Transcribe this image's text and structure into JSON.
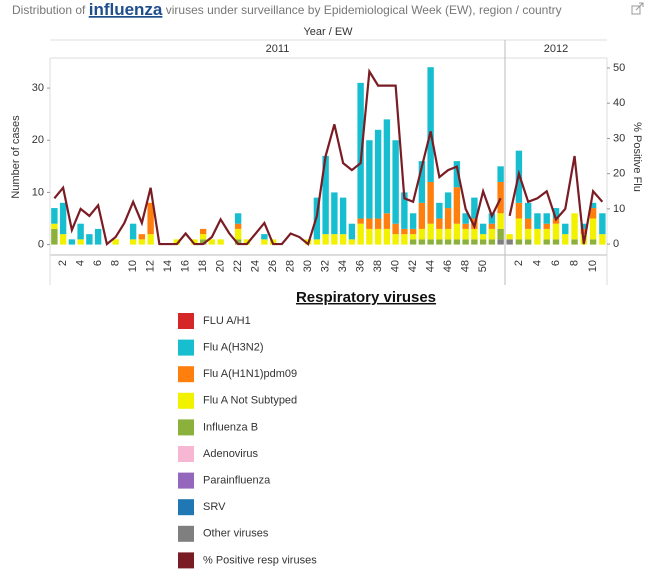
{
  "chart_data": {
    "type": "bar",
    "title_parts": [
      "Distribution of",
      "influenza",
      "viruses under surveillance by Epidemiological Week (EW), region / country"
    ],
    "x_header": "Year / EW",
    "ylabel": "Number of cases",
    "y2label": "% Positive Flu",
    "ylim": [
      -2,
      35
    ],
    "yticks": [
      0,
      10,
      20,
      30
    ],
    "y2lim": [
      -3.1,
      51.7
    ],
    "y2ticks": [
      0,
      10,
      20,
      30,
      40,
      50
    ],
    "legend_title": "Respiratory viruses",
    "groups": [
      {
        "label": "2011",
        "categories": [
          null,
          "2",
          null,
          "4",
          null,
          "6",
          null,
          "8",
          null,
          "10",
          null,
          "12",
          null,
          "14",
          null,
          "16",
          null,
          "18",
          null,
          "20",
          null,
          "22",
          null,
          "24",
          null,
          "26",
          null,
          "28",
          null,
          "30",
          null,
          "32",
          null,
          "34",
          null,
          "36",
          null,
          "38",
          null,
          "40",
          null,
          "42",
          null,
          "44",
          null,
          "46",
          null,
          "48",
          null,
          "50",
          null,
          null
        ]
      },
      {
        "label": "2012",
        "categories": [
          null,
          "2",
          null,
          "4",
          null,
          "6",
          null,
          "8",
          null,
          "10",
          null
        ]
      }
    ],
    "series": [
      {
        "name": "FLU A/H1",
        "color": "#d62728",
        "values": [
          0,
          0,
          0,
          0,
          0,
          0,
          0,
          0,
          0,
          0,
          0,
          0,
          0,
          0,
          0,
          0,
          0,
          0,
          0,
          0,
          0,
          0,
          0,
          0,
          0,
          0,
          0,
          0,
          0,
          0,
          0,
          0,
          0,
          0,
          0,
          0,
          0,
          0,
          0,
          0,
          0,
          0,
          0,
          0,
          0,
          0,
          0,
          0,
          0,
          0,
          0,
          0,
          0,
          0,
          0,
          0,
          0,
          0,
          0,
          0,
          0,
          0,
          0
        ]
      },
      {
        "name": "Flu A(H3N2)",
        "color": "#17becf",
        "values": [
          3,
          6,
          1,
          3,
          2,
          3,
          0,
          0,
          0,
          3,
          0,
          0,
          0,
          0,
          0,
          0,
          0,
          0,
          0,
          0,
          0,
          2,
          0,
          0,
          1,
          0,
          0,
          0,
          0,
          0,
          8,
          15,
          8,
          7,
          3,
          26,
          15,
          17,
          18,
          16,
          7,
          3,
          8,
          22,
          3,
          3,
          5,
          2,
          4,
          2,
          2,
          3,
          0,
          10,
          3,
          3,
          2,
          2,
          2,
          0,
          1,
          1,
          4
        ]
      },
      {
        "name": "Flu A(H1N1)pdm09",
        "color": "#ff7f0e",
        "values": [
          0,
          0,
          0,
          0,
          0,
          0,
          0,
          0,
          0,
          0,
          1,
          6,
          0,
          0,
          0,
          0,
          0,
          1,
          0,
          0,
          0,
          1,
          0,
          0,
          0,
          0,
          0,
          0,
          0,
          0,
          0,
          0,
          0,
          0,
          0,
          1,
          2,
          2,
          3,
          2,
          1,
          1,
          5,
          8,
          2,
          4,
          7,
          1,
          2,
          0,
          1,
          6,
          0,
          3,
          2,
          0,
          1,
          1,
          0,
          0,
          1,
          2,
          0
        ]
      },
      {
        "name": "Flu A Not Subtyped",
        "color": "#f2f200",
        "values": [
          1,
          2,
          0,
          1,
          0,
          0,
          0,
          1,
          0,
          1,
          1,
          2,
          0,
          0,
          1,
          0,
          1,
          1,
          1,
          1,
          0,
          2,
          1,
          0,
          1,
          1,
          0,
          0,
          0,
          1,
          1,
          2,
          2,
          2,
          1,
          4,
          3,
          3,
          3,
          2,
          2,
          1,
          2,
          3,
          2,
          2,
          3,
          2,
          2,
          1,
          2,
          3,
          1,
          4,
          2,
          3,
          2,
          3,
          2,
          5,
          2,
          4,
          2
        ]
      },
      {
        "name": "Influenza B",
        "color": "#8cb03c",
        "values": [
          3,
          0,
          0,
          0,
          0,
          0,
          0,
          0,
          0,
          0,
          0,
          0,
          0,
          0,
          0,
          0,
          0,
          1,
          0,
          0,
          0,
          1,
          0,
          0,
          0,
          0,
          0,
          0,
          0,
          0,
          0,
          0,
          0,
          0,
          0,
          0,
          0,
          0,
          0,
          0,
          0,
          1,
          1,
          1,
          1,
          1,
          1,
          1,
          1,
          1,
          1,
          2,
          0,
          1,
          1,
          0,
          1,
          1,
          0,
          1,
          0,
          1,
          0
        ]
      },
      {
        "name": "Adenovirus",
        "color": "#f7b6d2",
        "values": [
          0,
          0,
          0,
          0,
          0,
          0,
          0,
          0,
          0,
          0,
          0,
          0,
          0,
          0,
          0,
          0,
          0,
          0,
          0,
          0,
          0,
          0,
          0,
          0,
          0,
          0,
          0,
          0,
          0,
          0,
          0,
          0,
          0,
          0,
          0,
          0,
          0,
          0,
          0,
          0,
          0,
          0,
          0,
          0,
          0,
          0,
          0,
          0,
          0,
          0,
          0,
          0,
          0,
          0,
          0,
          0,
          0,
          0,
          0,
          0,
          0,
          0,
          0
        ]
      },
      {
        "name": "Parainfluenza",
        "color": "#9467bd",
        "values": [
          0,
          0,
          0,
          0,
          0,
          0,
          0,
          0,
          0,
          0,
          0,
          0,
          0,
          0,
          0,
          0,
          0,
          0,
          0,
          0,
          0,
          0,
          0,
          0,
          0,
          0,
          0,
          0,
          0,
          0,
          0,
          0,
          0,
          0,
          0,
          0,
          0,
          0,
          0,
          0,
          0,
          0,
          0,
          0,
          0,
          0,
          0,
          0,
          0,
          0,
          0,
          0,
          0,
          0,
          0,
          0,
          0,
          0,
          0,
          0,
          0,
          0,
          0
        ]
      },
      {
        "name": "SRV",
        "color": "#1f77b4",
        "values": [
          0,
          0,
          0,
          0,
          0,
          0,
          0,
          0,
          0,
          0,
          0,
          0,
          0,
          0,
          0,
          0,
          0,
          0,
          0,
          0,
          0,
          0,
          0,
          0,
          0,
          0,
          0,
          0,
          0,
          0,
          0,
          0,
          0,
          0,
          0,
          0,
          0,
          0,
          0,
          0,
          0,
          0,
          0,
          0,
          0,
          0,
          0,
          0,
          0,
          0,
          0,
          0,
          0,
          0,
          0,
          0,
          0,
          0,
          0,
          0,
          0,
          0,
          0
        ]
      },
      {
        "name": "Other viruses",
        "color": "#7f7f7f",
        "values": [
          0,
          0,
          0,
          0,
          0,
          0,
          0,
          0,
          0,
          0,
          0,
          0,
          0,
          0,
          0,
          0,
          0,
          0,
          0,
          0,
          0,
          0,
          0,
          0,
          0,
          0,
          0,
          0,
          0,
          0,
          0,
          0,
          0,
          0,
          0,
          0,
          0,
          0,
          0,
          0,
          0,
          0,
          0,
          0,
          0,
          0,
          0,
          0,
          0,
          0,
          0,
          1,
          1,
          0,
          0,
          0,
          0,
          0,
          0,
          0,
          0,
          0,
          0
        ]
      },
      {
        "name": "% Positive resp viruses",
        "color": "#7a1c24",
        "type": "line",
        "axis": "y2",
        "values": [
          13,
          16,
          4,
          10,
          8,
          11,
          0,
          2,
          6,
          12,
          6,
          16,
          0,
          0,
          0,
          3,
          0,
          0,
          2,
          7,
          3,
          0,
          0,
          3,
          6,
          0,
          0,
          3,
          2,
          0,
          8,
          25,
          34,
          23,
          21,
          23,
          49,
          45,
          45,
          45,
          13,
          12,
          22,
          32,
          19,
          21,
          22,
          10,
          5,
          15,
          8,
          13,
          8,
          20,
          12,
          13,
          15,
          7,
          10,
          25,
          0,
          15,
          12
        ]
      }
    ]
  }
}
